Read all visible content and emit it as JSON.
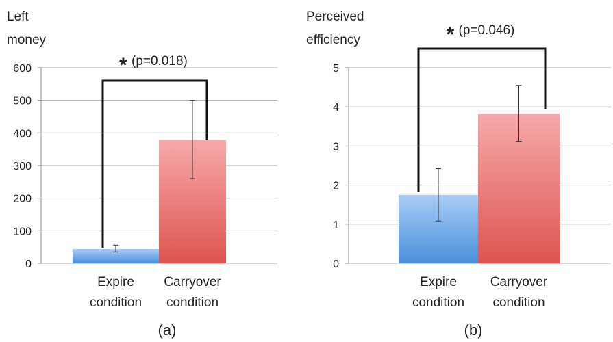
{
  "chart_data": [
    {
      "type": "bar",
      "panel_label": "(a)",
      "ylabel_lines": [
        "Left",
        "money"
      ],
      "categories": [
        {
          "lines": [
            "Expire",
            "condition"
          ]
        },
        {
          "lines": [
            "Carryover",
            "condition"
          ]
        }
      ],
      "values": [
        44,
        379
      ],
      "errors": [
        [
          35,
          56
        ],
        [
          260,
          500
        ]
      ],
      "ylim": [
        0,
        600
      ],
      "yticks": [
        0,
        100,
        200,
        300,
        400,
        500,
        600
      ],
      "grid": true,
      "bar_colors": [
        [
          "#a9cdf7",
          "#4a8fdb"
        ],
        [
          "#f7a9a9",
          "#dd5550"
        ]
      ],
      "significance": {
        "star": "*",
        "text": "(p=0.018)"
      }
    },
    {
      "type": "bar",
      "panel_label": "(b)",
      "ylabel_lines": [
        "Perceived",
        "efficiency"
      ],
      "categories": [
        {
          "lines": [
            "Expire",
            "condition"
          ]
        },
        {
          "lines": [
            "Carryover",
            "condition"
          ]
        }
      ],
      "values": [
        1.75,
        3.83
      ],
      "errors": [
        [
          1.08,
          2.42
        ],
        [
          3.12,
          4.55
        ]
      ],
      "ylim": [
        0,
        5
      ],
      "yticks": [
        0,
        1,
        2,
        3,
        4,
        5
      ],
      "grid": true,
      "bar_colors": [
        [
          "#a9cdf7",
          "#4a8fdb"
        ],
        [
          "#f7a9a9",
          "#dd5550"
        ]
      ],
      "significance": {
        "star": "*",
        "text": "(p=0.046)"
      }
    }
  ]
}
